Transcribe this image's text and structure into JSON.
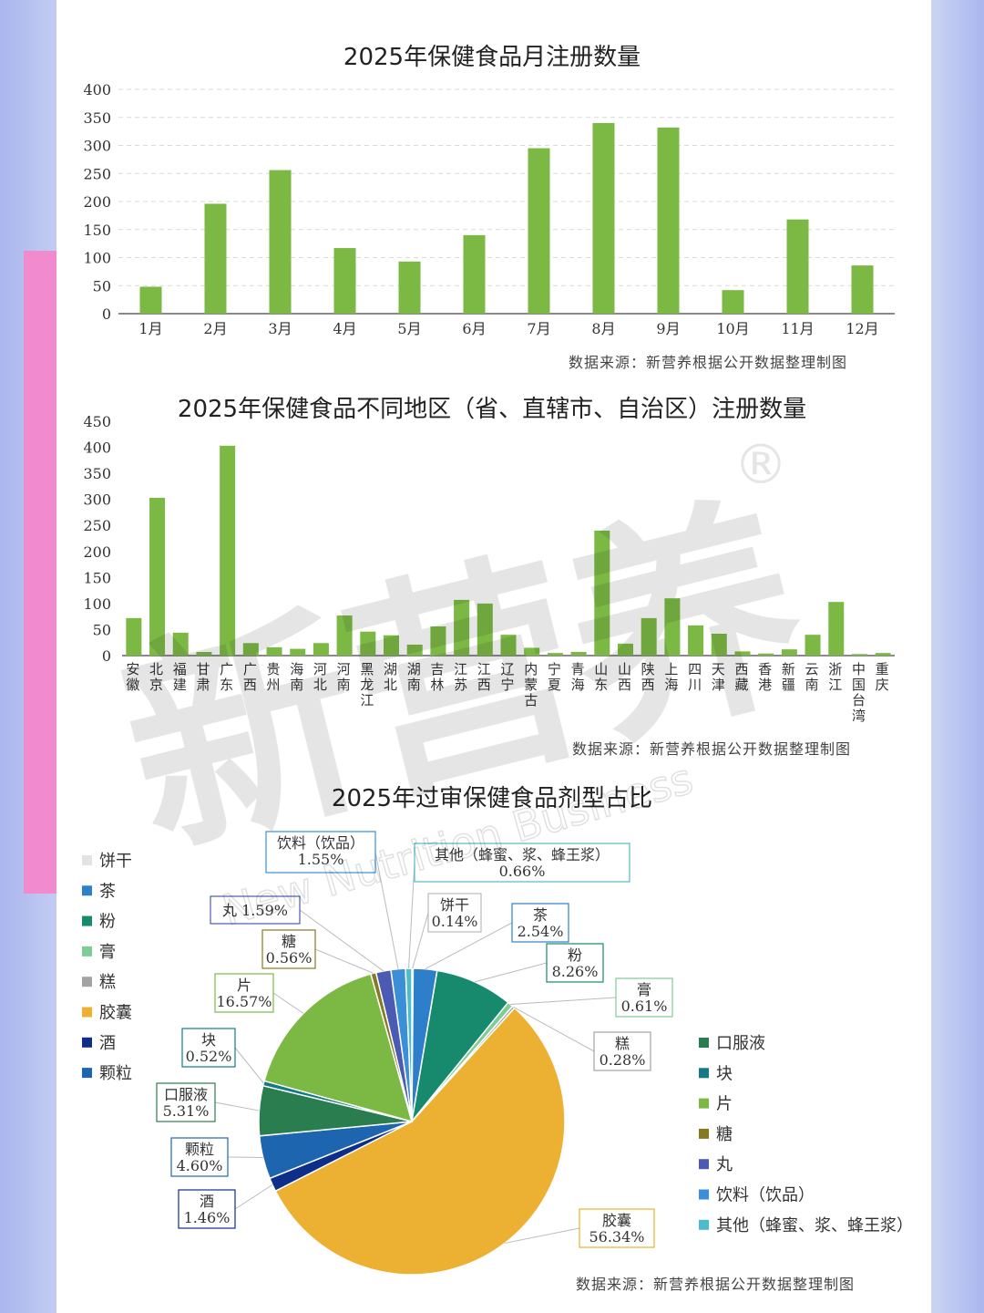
{
  "charts": {
    "monthly": {
      "source": "数据来源：新营养根据公开数据整理制图"
    },
    "regional": {
      "source": "数据来源：新营养根据公开数据整理制图"
    },
    "dosage": {
      "source": "数据来源：新营养根据公开数据整理制图"
    }
  },
  "watermark": {
    "brand": "新营养",
    "registered_mark": "®",
    "english": "New Nutrition Business"
  },
  "colors": {
    "bar": "#7cb944",
    "grid": "#d9d9d9",
    "axis": "#444444",
    "pink_accent": "#f28bcd"
  },
  "chart_data": [
    {
      "type": "bar",
      "title": "2025年保健食品月注册数量",
      "categories": [
        "1月",
        "2月",
        "3月",
        "4月",
        "5月",
        "6月",
        "7月",
        "8月",
        "9月",
        "10月",
        "11月",
        "12月"
      ],
      "values": [
        48,
        196,
        256,
        117,
        93,
        140,
        295,
        340,
        332,
        42,
        168,
        86
      ],
      "ylim": [
        0,
        400
      ],
      "yticks": [
        0,
        50,
        100,
        150,
        200,
        250,
        300,
        350,
        400
      ],
      "grid": true,
      "color": "#7cb944"
    },
    {
      "type": "bar",
      "title": "2025年保健食品不同地区（省、直辖市、自治区）注册数量",
      "categories": [
        "安徽",
        "北京",
        "福建",
        "甘肃",
        "广东",
        "广西",
        "贵州",
        "海南",
        "河北",
        "河南",
        "黑龙江",
        "湖北",
        "湖南",
        "吉林",
        "江苏",
        "江西",
        "辽宁",
        "内蒙古",
        "宁夏",
        "青海",
        "山东",
        "山西",
        "陕西",
        "上海",
        "四川",
        "天津",
        "西藏",
        "香港",
        "新疆",
        "云南",
        "浙江",
        "中国台湾",
        "重庆"
      ],
      "values": [
        72,
        303,
        44,
        7,
        403,
        24,
        16,
        13,
        24,
        77,
        46,
        39,
        21,
        56,
        107,
        100,
        40,
        15,
        5,
        7,
        240,
        23,
        72,
        110,
        58,
        42,
        8,
        4,
        12,
        40,
        103,
        3,
        5
      ],
      "ylim": [
        0,
        450
      ],
      "yticks": [
        0,
        50,
        100,
        150,
        200,
        250,
        300,
        350,
        400,
        450
      ],
      "grid": false,
      "color": "#7cb944"
    },
    {
      "type": "pie",
      "title": "2025年过审保健食品剂型占比",
      "slices": [
        {
          "name": "饼干",
          "label": "饼干",
          "value": 0.14,
          "pct": "0.14%",
          "color": "#e3e3e3"
        },
        {
          "name": "茶",
          "label": "茶",
          "value": 2.54,
          "pct": "2.54%",
          "color": "#2e7fc9"
        },
        {
          "name": "粉",
          "label": "粉",
          "value": 8.26,
          "pct": "8.26%",
          "color": "#178a6d"
        },
        {
          "name": "膏",
          "label": "膏",
          "value": 0.61,
          "pct": "0.61%",
          "color": "#7fcc95"
        },
        {
          "name": "糕",
          "label": "糕",
          "value": 0.28,
          "pct": "0.28%",
          "color": "#a3a3a3"
        },
        {
          "name": "胶囊",
          "label": "胶囊",
          "value": 56.34,
          "pct": "56.34%",
          "color": "#ecb132"
        },
        {
          "name": "酒",
          "label": "酒",
          "value": 1.46,
          "pct": "1.46%",
          "color": "#0d2f8a"
        },
        {
          "name": "颗粒",
          "label": "颗粒",
          "value": 4.6,
          "pct": "4.60%",
          "color": "#1e65b0"
        },
        {
          "name": "口服液",
          "label": "口服液",
          "value": 5.31,
          "pct": "5.31%",
          "color": "#2a7d4f"
        },
        {
          "name": "块",
          "label": "块",
          "value": 0.52,
          "pct": "0.52%",
          "color": "#137a86"
        },
        {
          "name": "片",
          "label": "片",
          "value": 16.57,
          "pct": "16.57%",
          "color": "#7cb944"
        },
        {
          "name": "糖",
          "label": "糖",
          "value": 0.56,
          "pct": "0.56%",
          "color": "#857a22"
        },
        {
          "name": "丸",
          "label": "丸 1.59%",
          "value": 1.59,
          "pct": "",
          "color": "#4b5bb2"
        },
        {
          "name": "饮料（饮品）",
          "label": "饮料（饮品）",
          "value": 1.55,
          "pct": "1.55%",
          "color": "#3b8fd6"
        },
        {
          "name": "其他（蜂蜜、浆、蜂王浆）",
          "label": "其他（蜂蜜、浆、蜂王浆）",
          "value": 0.66,
          "pct": "0.66%",
          "color": "#4bbccc"
        }
      ],
      "legend_left": [
        "饼干",
        "茶",
        "粉",
        "膏",
        "糕",
        "胶囊",
        "酒",
        "颗粒"
      ],
      "legend_right": [
        "口服液",
        "块",
        "片",
        "糖",
        "丸",
        "饮料（饮品）",
        "其他（蜂蜜、浆、蜂王浆）"
      ]
    }
  ]
}
